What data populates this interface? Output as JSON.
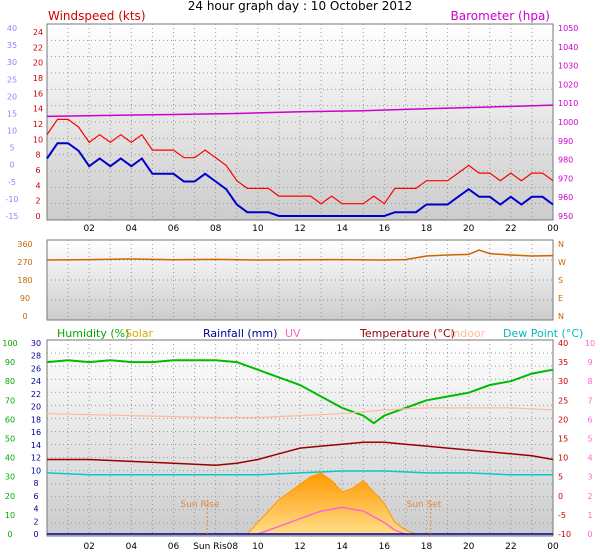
{
  "title": "24 hour graph day : 10 October 2012",
  "x_ticks": [
    "02",
    "04",
    "06",
    "08",
    "10",
    "12",
    "14",
    "16",
    "18",
    "20",
    "22",
    "00"
  ],
  "colors": {
    "wind_speed": "#ff0000",
    "wind_avg": "#0000cc",
    "temp_proxy_top": "#aaaaff",
    "barometer": "#cc00cc",
    "direction": "#cc6600",
    "humidity": "#00bb00",
    "solar": "#ffaa00",
    "rainfall": "#000099",
    "uv": "#ff66cc",
    "temperature": "#990000",
    "indoor": "#ffbb99",
    "dewpoint": "#00cccc"
  },
  "panels": {
    "wind": {
      "left_label": "Windspeed (kts)",
      "right_label": "Barometer (hpa)",
      "left_outer_ticks": [
        "40",
        "35",
        "30",
        "25",
        "20",
        "15",
        "10",
        "5",
        "0",
        "-5",
        "-10",
        "-15"
      ],
      "left_inner_ticks": [
        "24",
        "22",
        "20",
        "18",
        "16",
        "14",
        "12",
        "10",
        "8",
        "6",
        "4",
        "2",
        "0"
      ],
      "right_ticks": [
        "1050",
        "1040",
        "1030",
        "1020",
        "1010",
        "1000",
        "990",
        "980",
        "970",
        "960",
        "950"
      ]
    },
    "direction": {
      "left_ticks": [
        "360",
        "270",
        "180",
        "90",
        "0"
      ],
      "right_ticks": [
        "N",
        "W",
        "S",
        "E",
        "N"
      ]
    },
    "climate": {
      "legend": {
        "humidity": "Humidity (%)",
        "solar": "Solar",
        "rainfall": "Rainfall (mm)",
        "uv": "UV",
        "temperature": "Temperature (°C)",
        "indoor": "Indoor",
        "dewpoint": "Dew Point (°C)"
      },
      "left_outer_ticks": [
        "100",
        "90",
        "80",
        "70",
        "60",
        "50",
        "40",
        "30",
        "20",
        "10",
        "0"
      ],
      "left_inner_ticks": [
        "30",
        "28",
        "26",
        "24",
        "22",
        "20",
        "18",
        "16",
        "14",
        "12",
        "10",
        "8",
        "6",
        "4",
        "2",
        "0"
      ],
      "right_inner_ticks": [
        "40",
        "35",
        "30",
        "25",
        "20",
        "15",
        "10",
        "5",
        "0",
        "-5",
        "-10"
      ],
      "right_outer_ticks": [
        "10",
        "9",
        "8",
        "7",
        "6",
        "5",
        "4",
        "3",
        "2",
        "1",
        "0"
      ],
      "sunrise_label": "Sun Rise",
      "sunset_label": "Sun Set",
      "x_tick_sunrise": "Sun Ris08"
    }
  },
  "chart_data": [
    {
      "type": "line",
      "title": "24 hour graph day : 10 October 2012",
      "xlabel": "",
      "ylabel": "Windspeed (kts)",
      "x_unit": "hour",
      "xlim": [
        0,
        24
      ],
      "ylim": [
        0,
        25
      ],
      "y2lim": [
        950,
        1050
      ],
      "series": [
        {
          "name": "Windspeed (kts)",
          "axis": "left",
          "x": [
            0,
            0.5,
            1,
            1.5,
            2,
            2.5,
            3,
            3.5,
            4,
            4.5,
            5,
            5.5,
            6,
            6.5,
            7,
            7.5,
            8,
            8.5,
            9,
            9.5,
            10,
            10.5,
            11,
            11.5,
            12,
            12.5,
            13,
            13.5,
            14,
            14.5,
            15,
            15.5,
            16,
            16.5,
            17,
            17.5,
            18,
            18.5,
            19,
            19.5,
            20,
            20.5,
            21,
            21.5,
            22,
            22.5,
            23,
            23.5,
            24
          ],
          "values": [
            10,
            12,
            12,
            11,
            9,
            10,
            9,
            10,
            9,
            10,
            8,
            8,
            8,
            7,
            7,
            8,
            7,
            6,
            4,
            3,
            3,
            3,
            2,
            2,
            2,
            2,
            1,
            2,
            1,
            1,
            1,
            2,
            1,
            3,
            3,
            3,
            4,
            4,
            4,
            5,
            6,
            5,
            5,
            4,
            5,
            4,
            5,
            5,
            4
          ]
        },
        {
          "name": "Barometer (hpa)",
          "axis": "right",
          "x": [
            0,
            3,
            6,
            9,
            12,
            15,
            18,
            21,
            24
          ],
          "values": [
            1003,
            1003.5,
            1004,
            1004.5,
            1005.5,
            1006,
            1007,
            1008,
            1009
          ]
        }
      ]
    },
    {
      "type": "line",
      "xlabel": "",
      "ylabel": "",
      "xlim": [
        0,
        24
      ],
      "ylim": [
        0,
        360
      ],
      "series": [
        {
          "x": [
            0,
            2,
            4,
            6,
            8,
            10,
            12,
            14,
            16,
            17,
            18,
            19,
            20,
            20.5,
            21,
            22,
            23,
            24
          ],
          "values": [
            280,
            282,
            285,
            281,
            283,
            280,
            281,
            282,
            280,
            282,
            300,
            305,
            308,
            330,
            312,
            305,
            300,
            302
          ]
        }
      ]
    },
    {
      "type": "line",
      "xlabel": "",
      "ylabel": "",
      "xlim": [
        0,
        24
      ],
      "ylim": [
        0,
        100
      ],
      "y_temp_lim": [
        -10,
        40
      ],
      "series": [
        {
          "name": "Humidity (%)",
          "axis": "humidity",
          "x": [
            0,
            1,
            2,
            3,
            4,
            5,
            6,
            7,
            8,
            9,
            10,
            11,
            12,
            13,
            14,
            15,
            15.5,
            16,
            17,
            18,
            19,
            20,
            21,
            22,
            23,
            24
          ],
          "values": [
            90,
            91,
            90,
            91,
            90,
            90,
            91,
            91,
            91,
            90,
            86,
            82,
            78,
            72,
            66,
            62,
            58,
            62,
            66,
            70,
            72,
            74,
            78,
            80,
            84,
            86
          ]
        },
        {
          "name": "Temperature (°C)",
          "axis": "temp",
          "x": [
            0,
            2,
            4,
            6,
            8,
            9,
            10,
            11,
            12,
            13,
            14,
            15,
            16,
            17,
            18,
            19,
            20,
            21,
            22,
            23,
            24
          ],
          "values": [
            9.5,
            9.5,
            9,
            8.5,
            8,
            8.5,
            9.5,
            11,
            12.5,
            13,
            13.5,
            14,
            14,
            13.5,
            13,
            12.5,
            12,
            11.5,
            11,
            10.5,
            9.5
          ]
        },
        {
          "name": "Indoor",
          "axis": "temp",
          "x": [
            0,
            4,
            8,
            10,
            12,
            14,
            16,
            18,
            20,
            22,
            24
          ],
          "values": [
            21.5,
            21,
            20.5,
            20.5,
            21,
            21.5,
            22.5,
            23,
            23,
            23,
            22.5
          ]
        },
        {
          "name": "Dew Point (°C)",
          "axis": "temp",
          "x": [
            0,
            2,
            4,
            6,
            8,
            10,
            12,
            14,
            16,
            18,
            20,
            22,
            24
          ],
          "values": [
            6,
            5.5,
            5.5,
            5.5,
            5.5,
            5.5,
            6,
            6.5,
            6.5,
            6,
            6,
            5.5,
            5.5
          ]
        },
        {
          "name": "Solar",
          "axis": "temp",
          "type": "area",
          "x": [
            9.5,
            10,
            10.5,
            11,
            11.5,
            12,
            12.5,
            13,
            13.5,
            14,
            14.5,
            15,
            15.5,
            16,
            16.5,
            17,
            17.5
          ],
          "values": [
            -10,
            -7,
            -4,
            -1,
            1,
            3,
            5,
            6,
            4,
            1,
            2,
            4,
            1,
            -2,
            -7,
            -9,
            -10
          ]
        },
        {
          "name": "UV",
          "axis": "temp",
          "x": [
            10,
            11,
            12,
            13,
            14,
            15,
            16,
            16.5,
            17
          ],
          "values": [
            -10,
            -8,
            -6,
            -4,
            -3,
            -4,
            -7,
            -9,
            -10
          ]
        },
        {
          "name": "Rainfall (mm)",
          "axis": "rainfall",
          "x": [
            0,
            24
          ],
          "values": [
            0,
            0
          ]
        }
      ]
    }
  ]
}
